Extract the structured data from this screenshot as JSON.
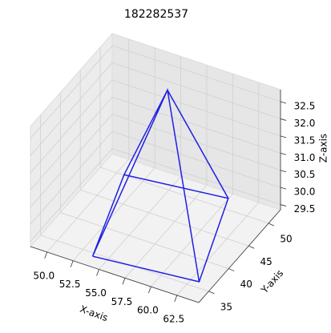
{
  "chart_data": {
    "type": "line3d",
    "title": "182282537",
    "x_label": "X-axis",
    "y_label": "Y-axis",
    "z_label": "Z-axis",
    "series": [
      {
        "color": "#1f1fe6",
        "x": [
          54.0,
          63.6,
          60.3,
          51.0,
          54.0,
          56.1,
          63.6,
          60.3,
          56.1,
          51.0
        ],
        "y": [
          33.5,
          35.2,
          51.1,
          49.2,
          33.5,
          46.8,
          35.2,
          51.1,
          46.8,
          49.2
        ],
        "z": [
          29.5,
          29.5,
          29.5,
          29.5,
          29.5,
          32.8,
          29.5,
          29.5,
          32.8,
          29.5
        ]
      }
    ],
    "xlim": [
      48.4,
      64.6
    ],
    "ylim": [
      32.5,
      53
    ],
    "zlim": [
      29.35,
      32.85
    ],
    "xticks": [
      {
        "value": 50,
        "label": "50.0"
      },
      {
        "value": 52.5,
        "label": "52.5"
      },
      {
        "value": 55,
        "label": "55.0"
      },
      {
        "value": 57.5,
        "label": "57.5"
      },
      {
        "value": 60,
        "label": "60.0"
      },
      {
        "value": 62.5,
        "label": "62.5"
      }
    ],
    "yticks": [
      35,
      40,
      45,
      50
    ],
    "zticks": [
      29.5,
      {
        "value": 30,
        "label": "30.0"
      },
      30.5,
      {
        "value": 31,
        "label": "31.0"
      },
      31.5,
      {
        "value": 32,
        "label": "32.0"
      },
      32.5
    ],
    "grid": true
  }
}
